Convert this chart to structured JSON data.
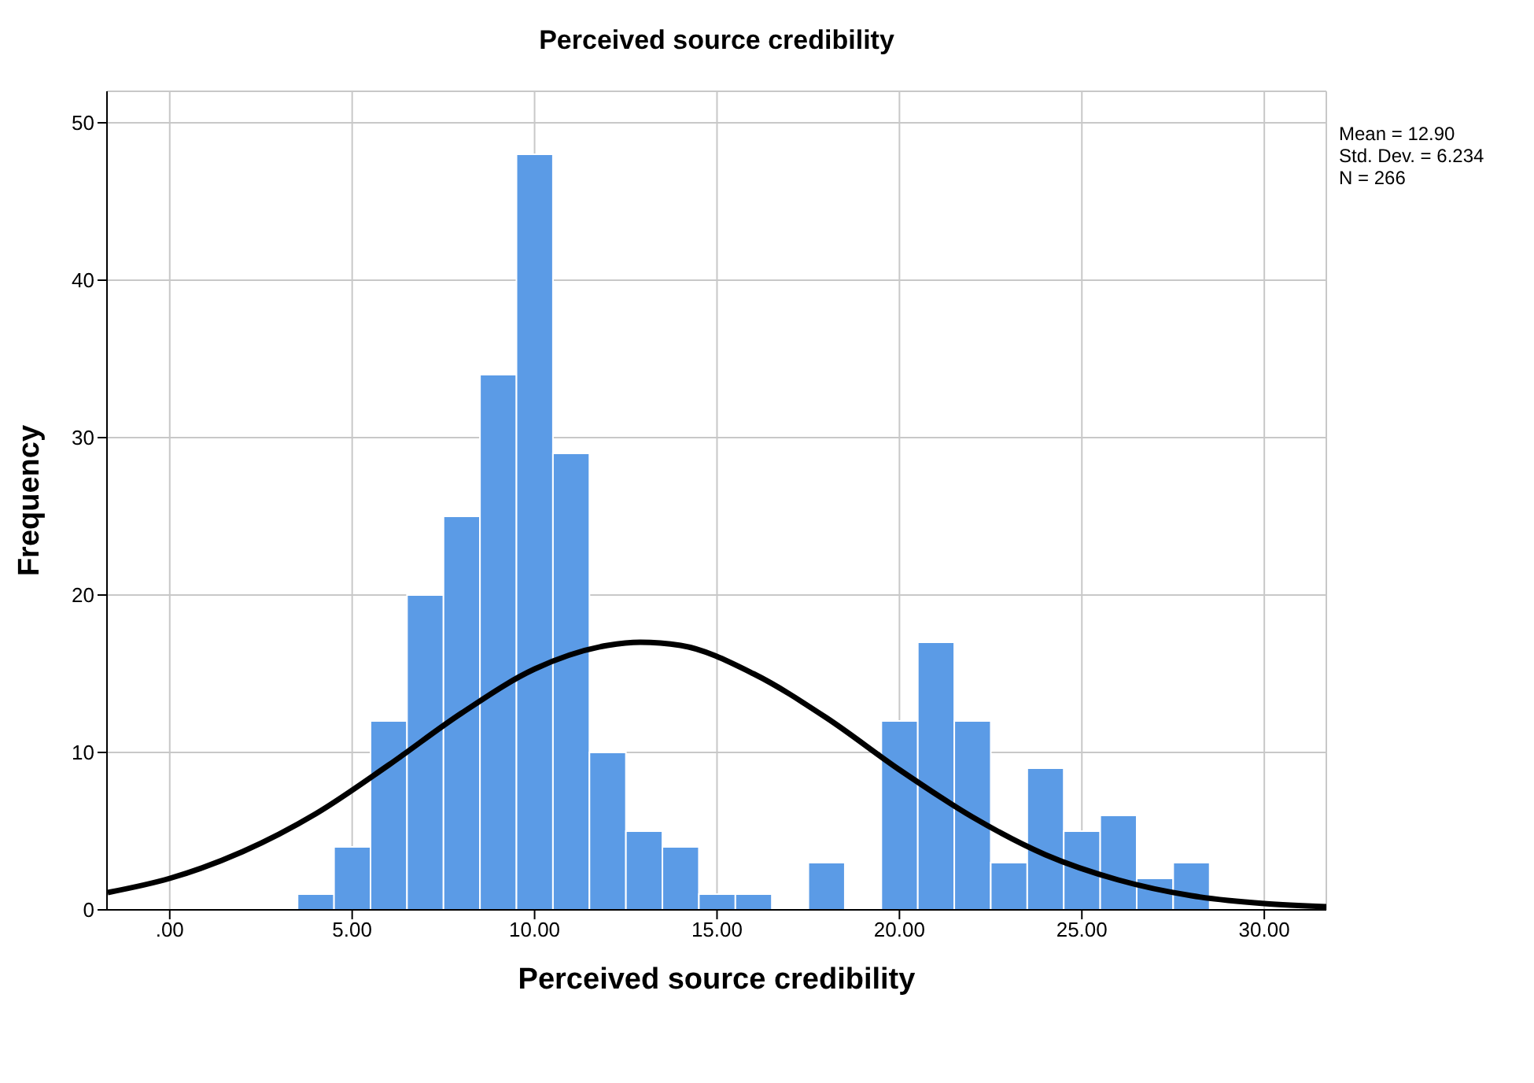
{
  "chart_data": {
    "type": "histogram",
    "title": "Perceived source credibility",
    "xlabel": "Perceived source credibility",
    "ylabel": "Frequency",
    "bins": [
      3.5,
      4.5,
      5.5,
      6.5,
      7.5,
      8.5,
      9.5,
      10.5,
      11.5,
      12.5,
      13.5,
      14.5,
      15.5,
      16.5,
      17.5,
      18.5,
      19.5,
      20.5,
      21.5,
      22.5,
      23.5,
      24.5,
      25.5,
      26.5,
      27.5,
      28.5
    ],
    "values": [
      1,
      4,
      12,
      20,
      25,
      34,
      48,
      29,
      10,
      5,
      4,
      1,
      1,
      0,
      3,
      0,
      12,
      17,
      12,
      3,
      9,
      5,
      6,
      2,
      3
    ],
    "color": "#5b9be6",
    "series": [
      {
        "type": "line",
        "color": "#000000",
        "marker": "none",
        "line_style": "solid",
        "x": [
          -1.7,
          0,
          2,
          4,
          6,
          8,
          10,
          12,
          12.9,
          14,
          16,
          18,
          20,
          22,
          24,
          26,
          28,
          30,
          31.7
        ],
        "values": [
          1.1,
          2.0,
          3.7,
          6.1,
          9.2,
          12.5,
          15.3,
          16.8,
          17.0,
          16.8,
          15.0,
          12.2,
          8.9,
          5.9,
          3.5,
          1.9,
          0.9,
          0.4,
          0.2
        ]
      }
    ],
    "xlim": [
      -1.72,
      31.7
    ],
    "xticks": [
      {
        "value": 0,
        "label": ".00"
      },
      {
        "value": 5,
        "label": "5.00"
      },
      {
        "value": 10,
        "label": "10.00"
      },
      {
        "value": 15,
        "label": "15.00"
      },
      {
        "value": 20,
        "label": "20.00"
      },
      {
        "value": 25,
        "label": "25.00"
      },
      {
        "value": 30,
        "label": "30.00"
      }
    ],
    "ylim": [
      0,
      52
    ],
    "yticks": [
      0,
      10,
      20,
      30,
      40,
      50
    ],
    "grid": true,
    "legend": false,
    "annotations": [
      "Mean = 12.90",
      "Std. Dev. = 6.234",
      "N = 266"
    ]
  }
}
